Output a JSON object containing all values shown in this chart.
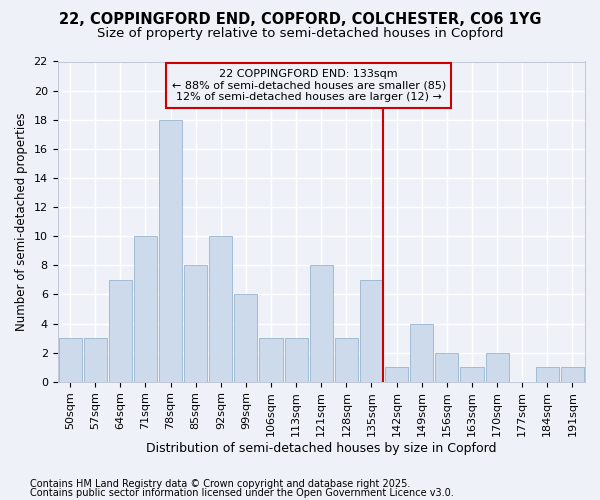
{
  "title1": "22, COPPINGFORD END, COPFORD, COLCHESTER, CO6 1YG",
  "title2": "Size of property relative to semi-detached houses in Copford",
  "xlabel": "Distribution of semi-detached houses by size in Copford",
  "ylabel": "Number of semi-detached properties",
  "categories": [
    "50sqm",
    "57sqm",
    "64sqm",
    "71sqm",
    "78sqm",
    "85sqm",
    "92sqm",
    "99sqm",
    "106sqm",
    "113sqm",
    "121sqm",
    "128sqm",
    "135sqm",
    "142sqm",
    "149sqm",
    "156sqm",
    "163sqm",
    "170sqm",
    "177sqm",
    "184sqm",
    "191sqm"
  ],
  "values": [
    3,
    3,
    7,
    10,
    18,
    8,
    10,
    6,
    3,
    3,
    8,
    3,
    7,
    1,
    4,
    2,
    1,
    2,
    0,
    1,
    1
  ],
  "bar_color": "#ccdaec",
  "bar_edgecolor": "#9ab4cc",
  "highlight_index": 12,
  "highlight_line_color": "#cc0000",
  "annotation_line1": "22 COPPINGFORD END: 133sqm",
  "annotation_line2": "← 88% of semi-detached houses are smaller (85)",
  "annotation_line3": "12% of semi-detached houses are larger (12) →",
  "annotation_box_edgecolor": "#cc0000",
  "ylim": [
    0,
    22
  ],
  "yticks": [
    0,
    2,
    4,
    6,
    8,
    10,
    12,
    14,
    16,
    18,
    20,
    22
  ],
  "footnote1": "Contains HM Land Registry data © Crown copyright and database right 2025.",
  "footnote2": "Contains public sector information licensed under the Open Government Licence v3.0.",
  "background_color": "#eef2f8",
  "grid_color": "#ffffff",
  "title_fontsize": 10.5,
  "subtitle_fontsize": 9.5,
  "tick_fontsize": 8,
  "ylabel_fontsize": 8.5,
  "xlabel_fontsize": 9,
  "footnote_fontsize": 7,
  "annot_fontsize": 8
}
